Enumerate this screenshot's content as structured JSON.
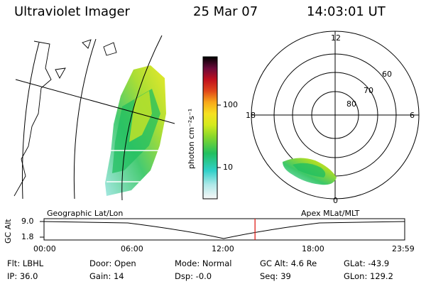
{
  "header": {
    "title": "Ultraviolet Imager",
    "date": "25 Mar 07",
    "time": "14:03:01 UT"
  },
  "colorbar": {
    "unit_label": "photon cm⁻²s⁻¹",
    "ticks": [
      "100",
      "10"
    ]
  },
  "polar_plot": {
    "hour_labels": [
      "12",
      "18",
      "6",
      "0"
    ],
    "lat_labels": [
      "60",
      "70",
      "80"
    ]
  },
  "timeline": {
    "y_axis_label": "GC Alt",
    "y_ticks": [
      "9.0",
      "1.8"
    ],
    "left_label": "Geographic Lat/Lon",
    "right_label": "Apex MLat/MLT",
    "x_ticks": [
      "00:00",
      "06:00",
      "12:00",
      "18:00",
      "23:59"
    ],
    "current_time_fraction": 0.585
  },
  "info": {
    "filter": "Flt: LBHL",
    "ip": "IP: 36.0",
    "door": "Door: Open",
    "gain": "Gain: 14",
    "mode": "Mode: Normal",
    "dsp": "Dsp:   -0.0",
    "gc_alt": "GC Alt: 4.6 Re",
    "seq": "Seq: 39",
    "glat": "GLat: -43.9",
    "glon": "GLon: 129.2"
  },
  "colors": {
    "marker": "#e0201a",
    "palette": [
      "#ffffff",
      "#9fe6e0",
      "#2fd0c8",
      "#22bf60",
      "#7fd42a",
      "#c8e81e",
      "#f0e020",
      "#f8a81a",
      "#e0461a",
      "#c0101e",
      "#6a0a3a",
      "#000000"
    ]
  }
}
